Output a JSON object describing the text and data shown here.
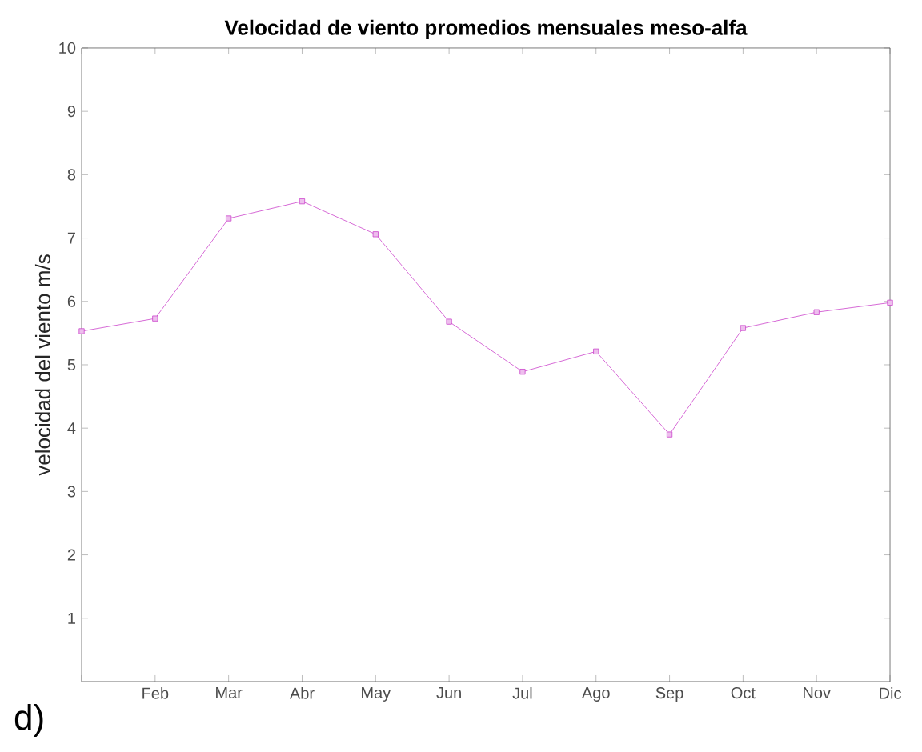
{
  "chart_data": {
    "type": "line",
    "title": "Velocidad de viento promedios mensuales meso-alfa",
    "ylabel": "velocidad del viento m/s",
    "categories": [
      null,
      "Feb",
      "Mar",
      "Abr",
      "May",
      "Jun",
      "Jul",
      "Ago",
      "Sep",
      "Oct",
      "Nov",
      "Dic"
    ],
    "series": [
      {
        "color": "#cc44cc",
        "values": [
          5.53,
          5.73,
          7.31,
          7.58,
          7.06,
          5.68,
          4.89,
          5.21,
          3.9,
          5.58,
          5.83,
          5.98
        ]
      }
    ],
    "ylim": [
      0,
      10
    ],
    "yticks": [
      1,
      2,
      3,
      4,
      5,
      6,
      7,
      8,
      9,
      10
    ],
    "marker": "square",
    "line_style": "solid",
    "grid": false,
    "annotations": [
      "d)"
    ]
  }
}
